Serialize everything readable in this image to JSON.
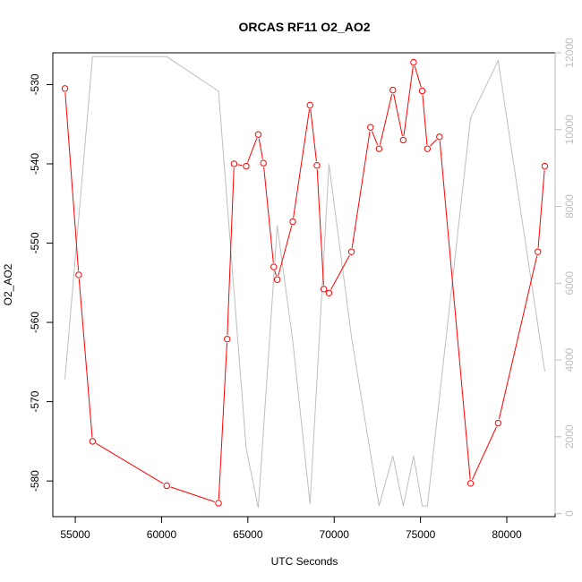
{
  "chart_data": {
    "type": "line",
    "title": "ORCAS RF11 O2_AO2",
    "xlabel": "UTC Seconds",
    "ylabel": "O2_AO2",
    "xlim": [
      53700,
      82800
    ],
    "ylim": [
      -584.5,
      -526.0
    ],
    "y2lim": [
      -80,
      12000
    ],
    "x_ticks": [
      55000,
      60000,
      65000,
      70000,
      75000,
      80000
    ],
    "x_tick_labels": [
      "55000",
      "60000",
      "65000",
      "70000",
      "75000",
      "80000"
    ],
    "y_ticks": [
      -530,
      -540,
      -550,
      -560,
      -570,
      -580
    ],
    "y_tick_labels": [
      "-530",
      "-540",
      "-550",
      "-560",
      "-570",
      "-580"
    ],
    "y2_ticks": [
      0,
      2000,
      4000,
      6000,
      8000,
      10000,
      12000
    ],
    "y2_tick_labels": [
      "0",
      "2000",
      "4000",
      "6000",
      "8000",
      "10000",
      "12000"
    ],
    "grid": false,
    "box": true,
    "series": [
      {
        "axis": "left",
        "color": "#ff0000",
        "marker": "open-circle",
        "x": [
          54400,
          55200,
          56000,
          60300,
          63300,
          63800,
          64200,
          64900,
          65600,
          65900,
          66500,
          66700,
          67600,
          68600,
          69000,
          69400,
          69700,
          71000,
          72100,
          72600,
          73400,
          74000,
          74600,
          75100,
          75400,
          76100,
          77900,
          79500,
          81800,
          82200
        ],
        "values": [
          -530.5,
          -554,
          -575,
          -580.6,
          -582.8,
          -562.1,
          -540,
          -540.3,
          -536.3,
          -539.9,
          -553,
          -554.6,
          -547.3,
          -532.6,
          -540.2,
          -555.8,
          -556.3,
          -551.1,
          -535.4,
          -538.1,
          -530.7,
          -537,
          -527.2,
          -530.8,
          -538.1,
          -536.6,
          -580.3,
          -572.7,
          -551.1,
          -540.3
        ]
      },
      {
        "axis": "right",
        "color": "#bebebe",
        "marker": "none",
        "x": [
          54400,
          56000,
          60300,
          63300,
          64900,
          65600,
          66700,
          67600,
          68600,
          69700,
          71000,
          72600,
          73400,
          74000,
          74600,
          75100,
          75400,
          77900,
          79500,
          82200
        ],
        "values": [
          3500,
          11900,
          11900,
          11000,
          1700,
          150,
          7500,
          4500,
          250,
          9100,
          4600,
          200,
          1500,
          200,
          1500,
          200,
          200,
          10300,
          11800,
          3700
        ]
      }
    ]
  }
}
